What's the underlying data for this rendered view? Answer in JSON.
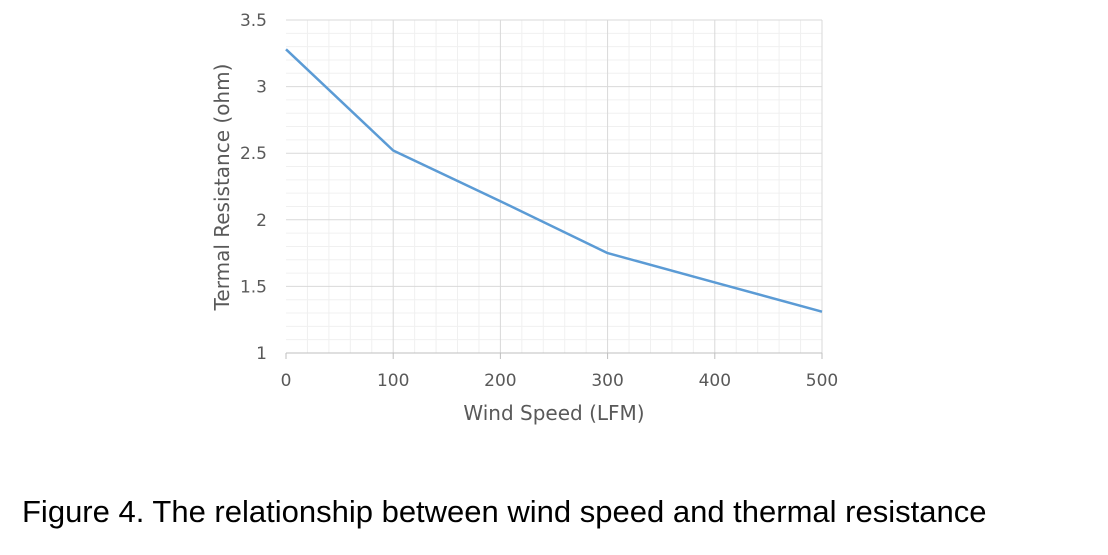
{
  "chart_data": {
    "type": "line",
    "xlabel": "Wind Speed (LFM)",
    "ylabel": "Termal Resistance (ohm)",
    "xlim": [
      0,
      500
    ],
    "ylim": [
      1,
      3.5
    ],
    "xticks": [
      "0",
      "100",
      "200",
      "300",
      "400",
      "500"
    ],
    "yticks": [
      "1",
      "1.5",
      "2",
      "2.5",
      "3",
      "3.5"
    ],
    "grid": true,
    "series": [
      {
        "color": "#5b9bd5",
        "x": [
          0,
          100,
          200,
          300,
          400,
          500
        ],
        "y": [
          3.28,
          2.52,
          2.14,
          1.75,
          1.53,
          1.31
        ]
      }
    ]
  },
  "caption": "Figure 4. The relationship between wind speed and thermal resistance"
}
